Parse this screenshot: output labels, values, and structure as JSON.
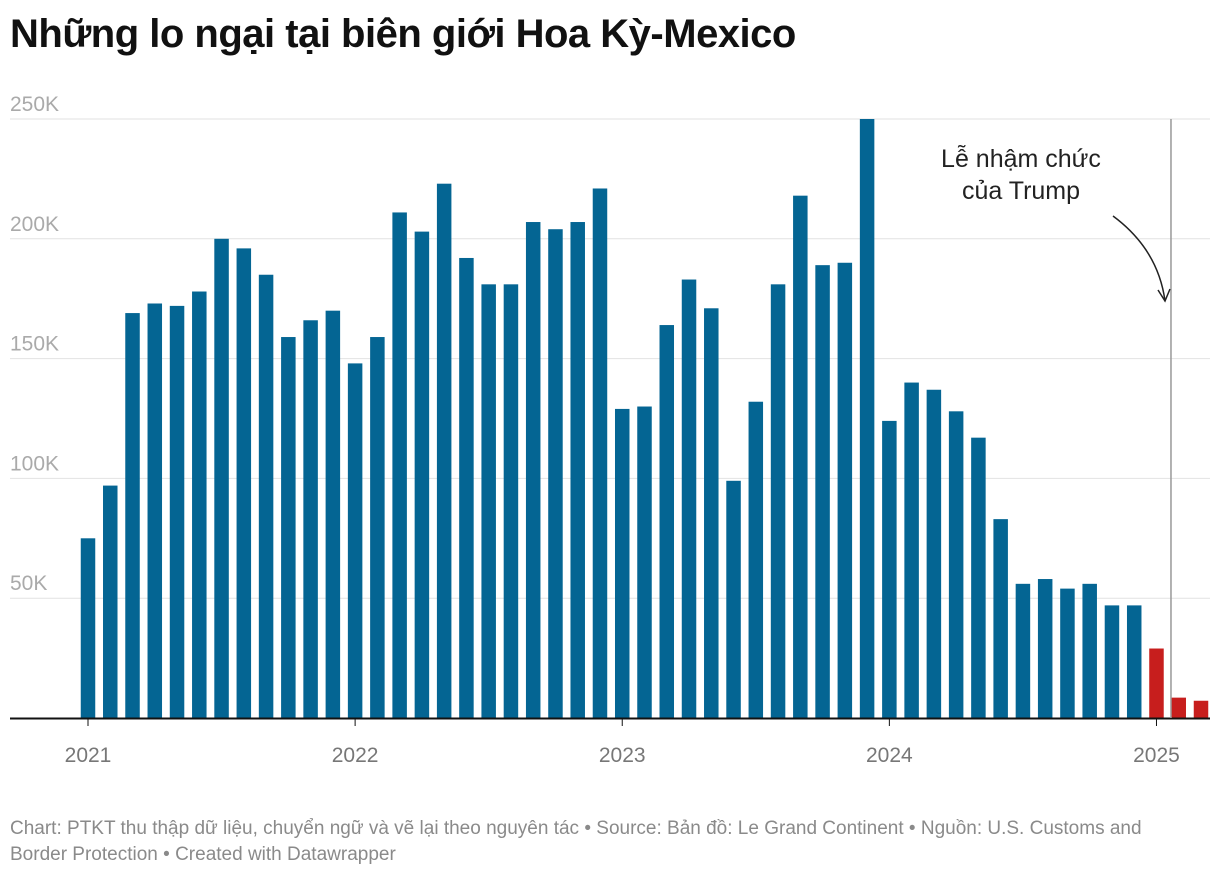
{
  "title": "Những lo ngại tại biên giới Hoa Kỳ-Mexico",
  "annotation": {
    "lines": [
      "Lễ nhậm chức",
      "của Trump"
    ]
  },
  "footer": {
    "chart": "Chart: PTKT thu thập dữ liệu, chuyển ngữ và vẽ lại theo nguyên tác",
    "source": "Source: Bản đồ: Le Grand Continent • Nguồn: U.S. Customs and Border Protection ",
    "created": "Created with Datawrapper"
  },
  "colors": {
    "bar": "#046593",
    "highlight": "#c71e1d",
    "grid": "#e2e2e2",
    "axis": "#111111",
    "tick_text": "#777777",
    "ygrid_text": "#aaaaaa",
    "marker": "#999999"
  },
  "chart_data": {
    "type": "bar",
    "x_start": "2021-01",
    "interval": "month",
    "ylim": [
      0,
      250000
    ],
    "y_ticks": [
      {
        "value": 50000,
        "label": "50K"
      },
      {
        "value": 100000,
        "label": "100K"
      },
      {
        "value": 150000,
        "label": "150K"
      },
      {
        "value": 200000,
        "label": "200K"
      },
      {
        "value": 250000,
        "label": "250K"
      }
    ],
    "x_ticks": [
      "2021",
      "2022",
      "2023",
      "2024",
      "2025"
    ],
    "grid": true,
    "marker_date": "2025-01",
    "values": [
      75000,
      97000,
      169000,
      173000,
      172000,
      178000,
      200000,
      196000,
      185000,
      159000,
      166000,
      170000,
      148000,
      159000,
      211000,
      203000,
      223000,
      192000,
      181000,
      181000,
      207000,
      204000,
      207000,
      221000,
      129000,
      130000,
      164000,
      183000,
      171000,
      99000,
      132000,
      181000,
      218000,
      189000,
      190000,
      250000,
      124000,
      140000,
      137000,
      128000,
      117000,
      83000,
      56000,
      58000,
      54000,
      56000,
      47000,
      47000,
      29000,
      8500,
      7200
    ],
    "highlight_from_index": 48
  }
}
